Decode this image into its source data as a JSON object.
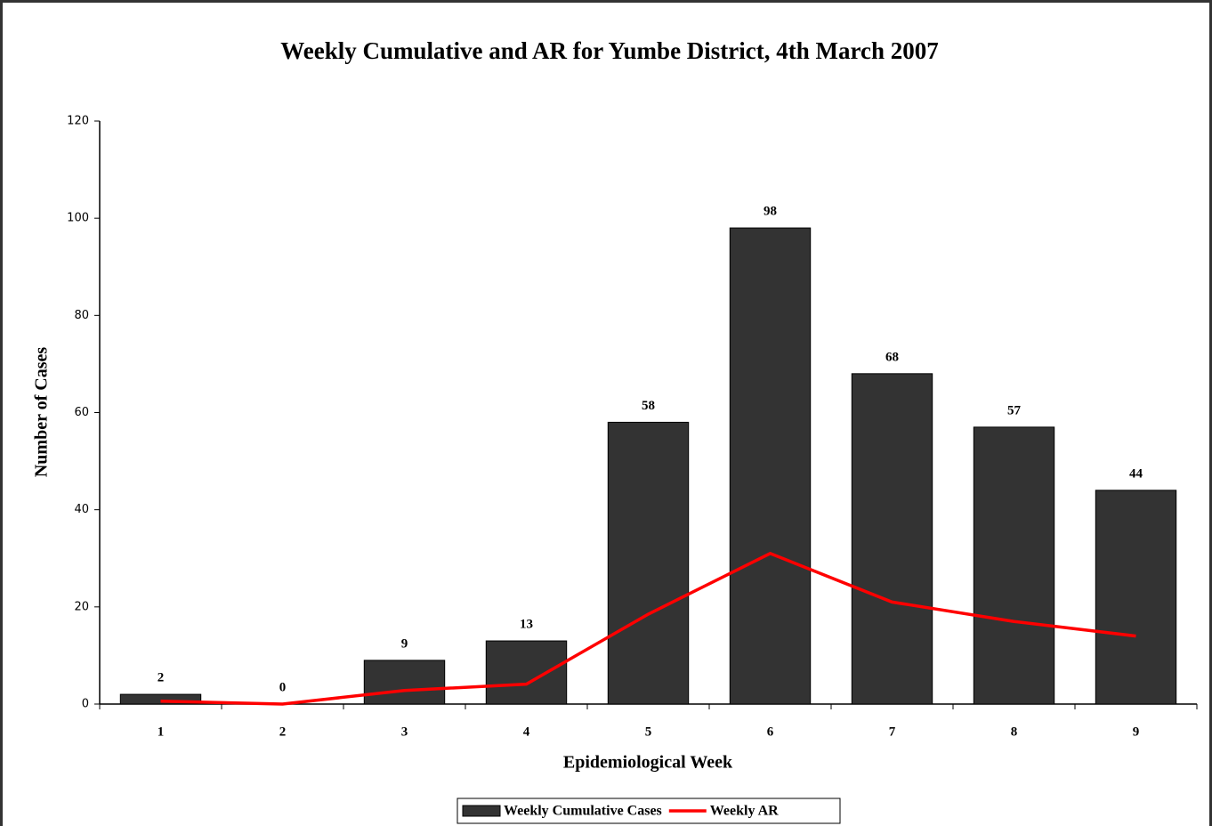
{
  "chart_data": {
    "type": "bar",
    "title": "Weekly Cumulative and AR for Yumbe District, 4th March 2007",
    "x_label": "Epidemiological Week",
    "y_label": "Number of Cases",
    "categories": [
      "1",
      "2",
      "3",
      "4",
      "5",
      "6",
      "7",
      "8",
      "9"
    ],
    "series": [
      {
        "name": "Weekly Cumulative Cases",
        "type": "bar",
        "color": "#333333",
        "values": [
          2,
          0,
          9,
          13,
          58,
          98,
          68,
          57,
          44
        ],
        "data_labels": true
      },
      {
        "name": "Weekly AR",
        "type": "line",
        "color": "#ff0000",
        "values": [
          0.6,
          0,
          2.8,
          4.1,
          18.5,
          31,
          21,
          17,
          14
        ]
      }
    ],
    "ylim": [
      0,
      120
    ],
    "yticks": [
      0,
      20,
      40,
      60,
      80,
      100,
      120
    ],
    "grid": false,
    "legend": "bottom"
  }
}
